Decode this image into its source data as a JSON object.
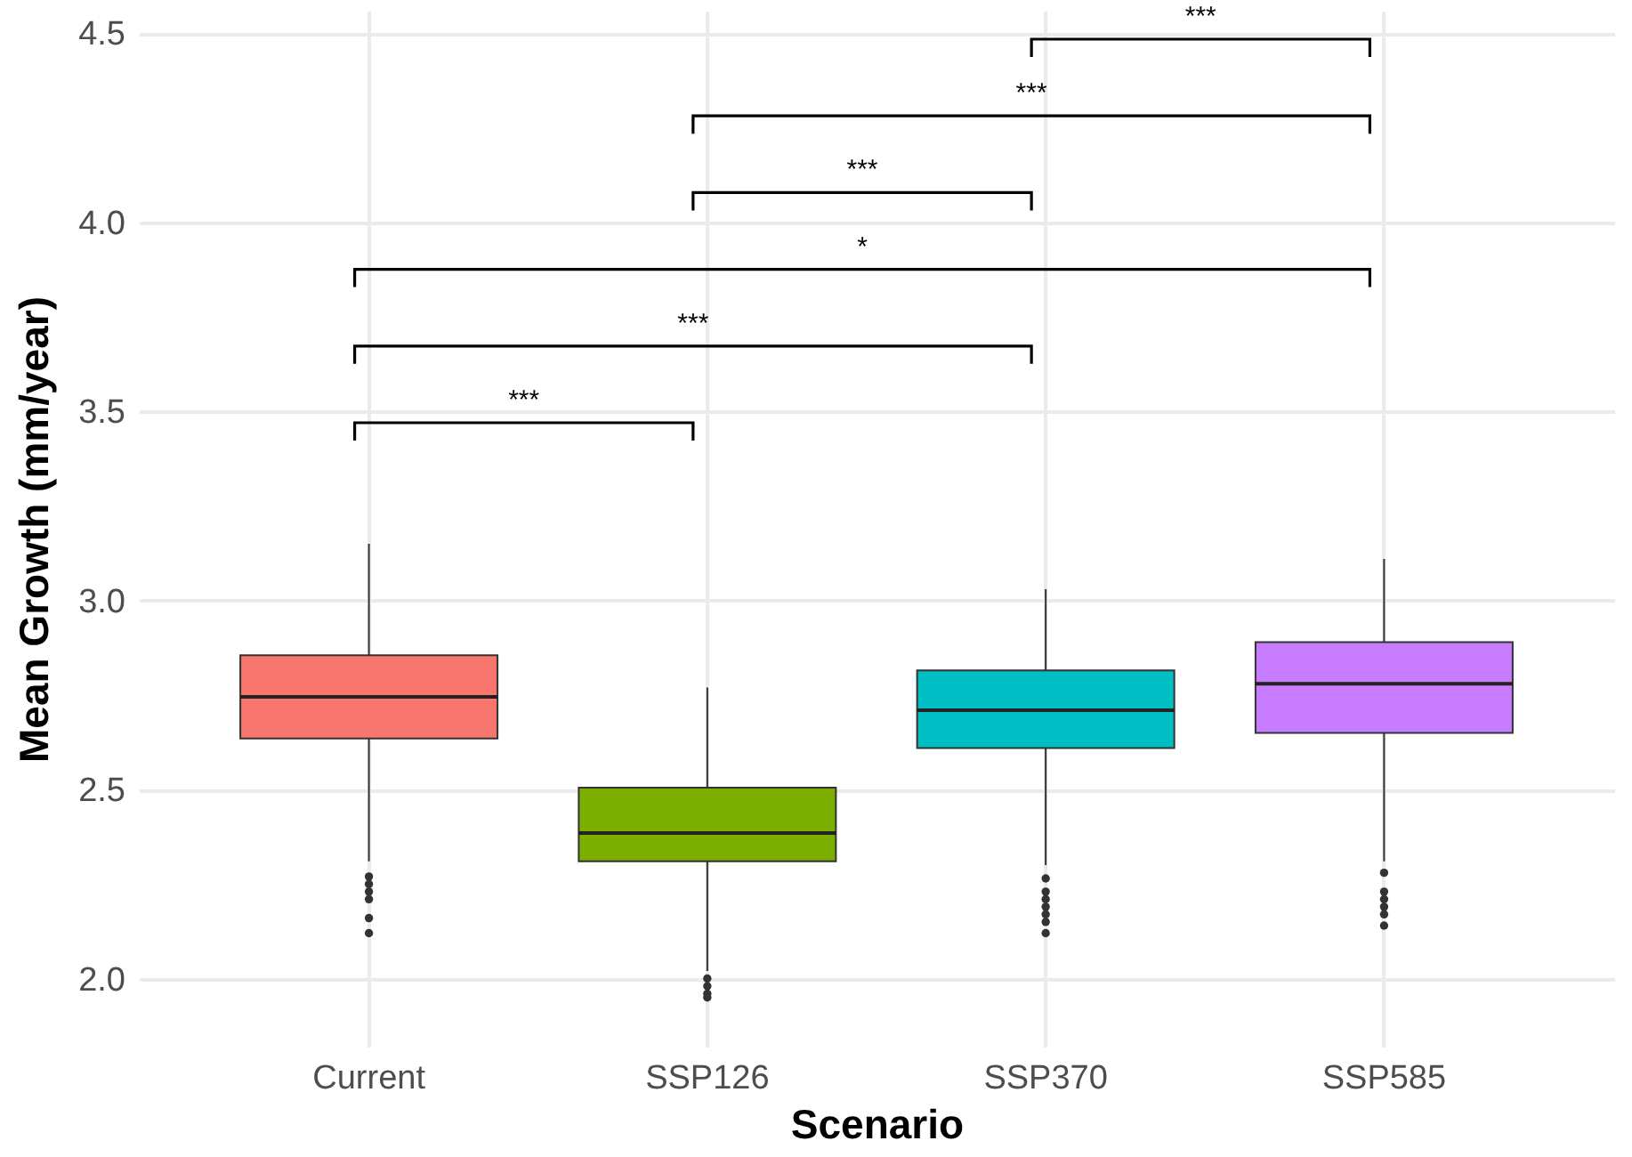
{
  "chart_data": {
    "type": "box",
    "xlabel": "Scenario",
    "ylabel": "Mean Growth (mm/year)",
    "categories": [
      "Current",
      "SSP126",
      "SSP370",
      "SSP585"
    ],
    "colors": [
      "#f8766d",
      "#7cae00",
      "#00bfc4",
      "#c77cff"
    ],
    "boxes": [
      {
        "low": 2.31,
        "q1": 2.635,
        "median": 2.745,
        "q3": 2.855,
        "high": 3.15,
        "outliers": [
          2.27,
          2.25,
          2.23,
          2.21,
          2.16,
          2.12
        ]
      },
      {
        "low": 2.02,
        "q1": 2.31,
        "median": 2.385,
        "q3": 2.505,
        "high": 2.77,
        "outliers": [
          2.0,
          1.98,
          1.96,
          1.95
        ]
      },
      {
        "low": 2.3,
        "q1": 2.61,
        "median": 2.71,
        "q3": 2.815,
        "high": 3.03,
        "outliers": [
          2.265,
          2.23,
          2.21,
          2.19,
          2.17,
          2.15,
          2.12
        ]
      },
      {
        "low": 2.31,
        "q1": 2.65,
        "median": 2.78,
        "q3": 2.89,
        "high": 3.11,
        "outliers": [
          2.28,
          2.23,
          2.21,
          2.19,
          2.17,
          2.14
        ]
      }
    ],
    "ylim": [
      1.82,
      4.56
    ],
    "yticks": [
      {
        "value": 2,
        "label": "2.0"
      },
      {
        "value": 2.5,
        "label": "2.5"
      },
      {
        "value": 3,
        "label": "3.0"
      },
      {
        "value": 3.5,
        "label": "3.5"
      },
      {
        "value": 4,
        "label": "4.0"
      },
      {
        "value": 4.5,
        "label": "4.5"
      }
    ],
    "grid": true,
    "annotations": [
      "***",
      "***",
      "*",
      "***",
      "***",
      "***"
    ]
  }
}
